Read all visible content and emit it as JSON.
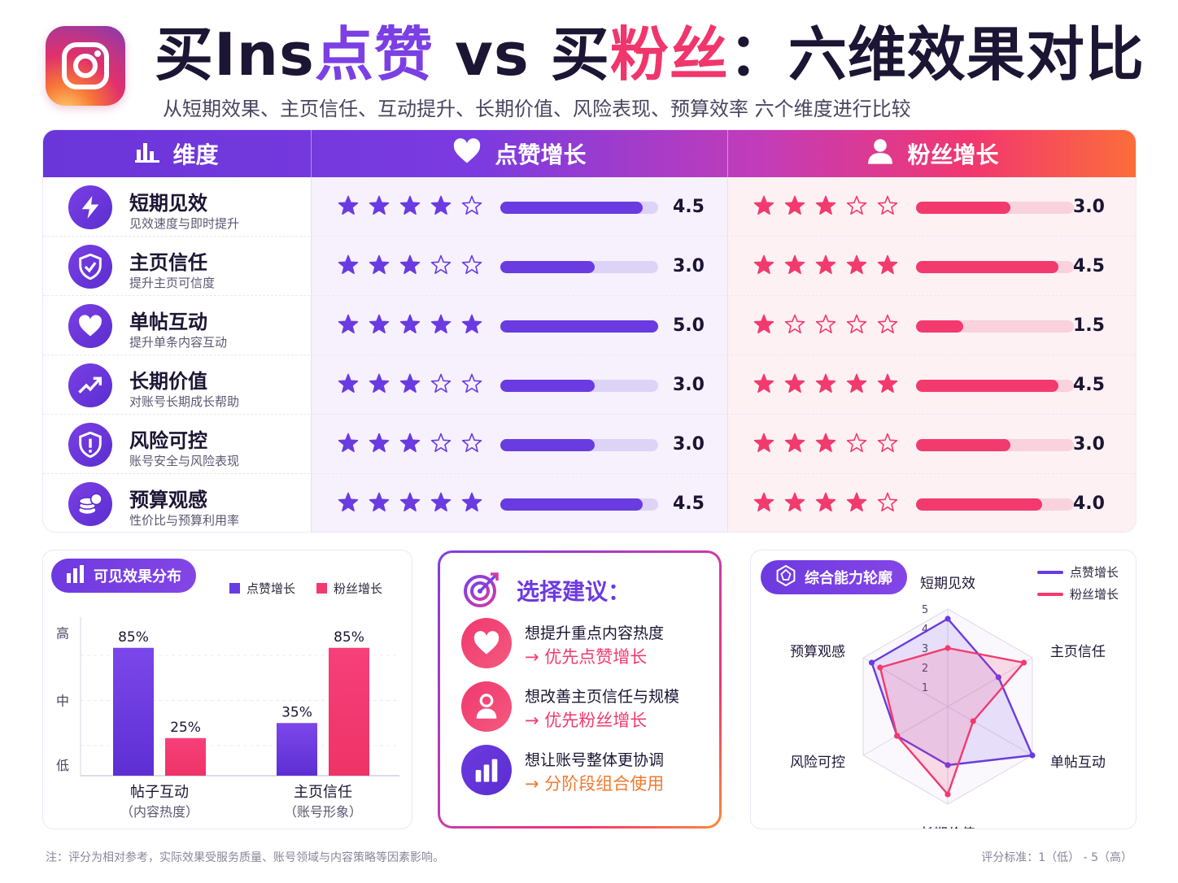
{
  "header": {
    "title_parts": [
      "买Ins",
      "点赞",
      " vs 买",
      "粉丝",
      "：六维效果对比"
    ],
    "subtitle": "从短期效果、主页信任、互动提升、长期价值、风险表现、预算效率 六个维度进行比较"
  },
  "table": {
    "headers": [
      "维度",
      "点赞增长",
      "粉丝增长"
    ],
    "rows": [
      {
        "name": "短期见效",
        "desc": "见效速度与即时提升",
        "icon": "lightning-icon",
        "likes": 4.5,
        "likes_label": "4.5",
        "likes_stars": 4,
        "fans": 3.0,
        "fans_label": "3.0",
        "fans_stars": 3
      },
      {
        "name": "主页信任",
        "desc": "提升主页可信度",
        "icon": "shield-check-icon",
        "likes": 3.0,
        "likes_label": "3.0",
        "likes_stars": 3,
        "fans": 4.5,
        "fans_label": "4.5",
        "fans_stars": 5
      },
      {
        "name": "单帖互动",
        "desc": "提升单条内容互动",
        "icon": "heart-icon",
        "likes": 5.0,
        "likes_label": "5.0",
        "likes_stars": 5,
        "fans": 1.5,
        "fans_label": "1.5",
        "fans_stars": 1
      },
      {
        "name": "长期价值",
        "desc": "对账号长期成长帮助",
        "icon": "trend-up-icon",
        "likes": 3.0,
        "likes_label": "3.0",
        "likes_stars": 3,
        "fans": 4.5,
        "fans_label": "4.5",
        "fans_stars": 5
      },
      {
        "name": "风险可控",
        "desc": "账号安全与风险表现",
        "icon": "shield-alert-icon",
        "likes": 3.0,
        "likes_label": "3.0",
        "likes_stars": 3,
        "fans": 3.0,
        "fans_label": "3.0",
        "fans_stars": 3
      },
      {
        "name": "预算观感",
        "desc": "性价比与预算利用率",
        "icon": "coins-icon",
        "likes": 4.5,
        "likes_label": "4.5",
        "likes_stars": 5,
        "fans": 4.0,
        "fans_label": "4.0",
        "fans_stars": 4
      }
    ]
  },
  "colors": {
    "likes": "#6a3be0",
    "fans": "#f23a6e",
    "likes_track": "#ddd3f7",
    "fans_track": "#f9d2dd"
  },
  "chart_data": [
    {
      "type": "bar",
      "title": "可见效果分布",
      "categories": [
        "帖子互动",
        "主页信任"
      ],
      "category_sub": [
        "（内容热度）",
        "（账号形象）"
      ],
      "y_tick_labels": [
        "高",
        "中",
        "低"
      ],
      "series": [
        {
          "name": "点赞增长",
          "values": [
            85,
            35
          ],
          "labels": [
            "85%",
            "35%"
          ]
        },
        {
          "name": "粉丝增长",
          "values": [
            25,
            85
          ],
          "labels": [
            "25%",
            "85%"
          ]
        }
      ],
      "ylim": [
        0,
        100
      ]
    },
    {
      "type": "radar",
      "title": "综合能力轮廓",
      "axes": [
        "短期见效",
        "主页信任",
        "单帖互动",
        "长期价值",
        "风险可控",
        "预算观感"
      ],
      "r_ticks": [
        "1",
        "2",
        "3",
        "4",
        "5"
      ],
      "rlim": [
        0,
        5
      ],
      "series": [
        {
          "name": "点赞增长",
          "values": [
            4.5,
            3.0,
            5.0,
            3.0,
            3.0,
            4.5
          ]
        },
        {
          "name": "粉丝增长",
          "values": [
            3.0,
            4.5,
            1.5,
            4.5,
            3.0,
            4.0
          ]
        }
      ]
    }
  ],
  "advice": {
    "title": "选择建议：",
    "items": [
      {
        "q": "想提升重点内容热度",
        "a": "→ 优先点赞增长",
        "icon": "heart-icon",
        "color": "#f23a6e"
      },
      {
        "q": "想改善主页信任与规模",
        "a": "→ 优先粉丝增长",
        "icon": "user-icon",
        "color": "#f23a6e"
      },
      {
        "q": "想让账号整体更协调",
        "a": "→ 分阶段组合使用",
        "icon": "bar-chart-icon",
        "color": "#f07a2f"
      }
    ]
  },
  "footer": {
    "note": "注：评分为相对参考，实际效果受服务质量、账号领域与内容策略等因素影响。",
    "scale": "评分标准：1（低） - 5（高）"
  }
}
